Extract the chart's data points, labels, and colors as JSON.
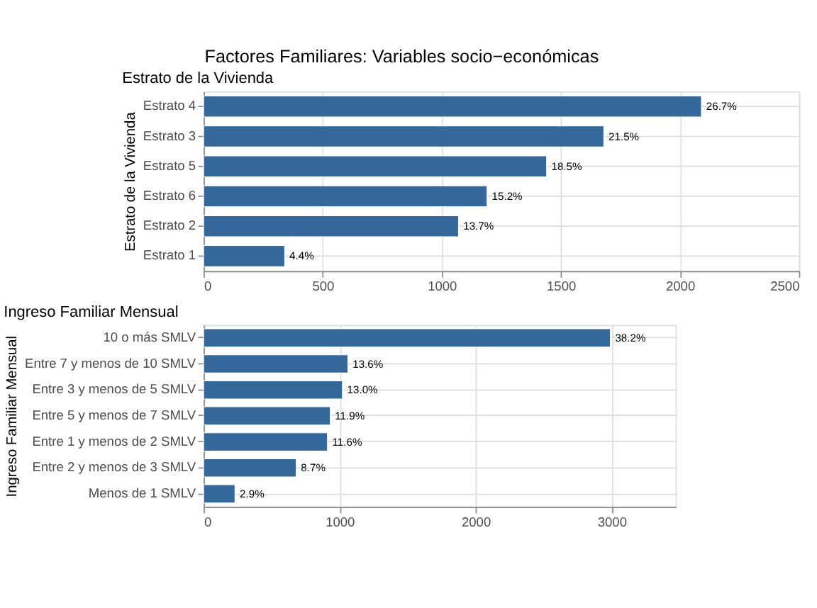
{
  "chart_data": [
    {
      "type": "bar",
      "orientation": "horizontal",
      "title": "Factores Familiares: Variables socio−económicas",
      "subtitle": "Estrato de la Vivienda",
      "ylabel": "Estrato de la Vivienda",
      "categories": [
        "Estrato 4",
        "Estrato 3",
        "Estrato 5",
        "Estrato 6",
        "Estrato 2",
        "Estrato 1"
      ],
      "series": [
        {
          "color": "#35689b",
          "values": [
            2090,
            1680,
            1440,
            1190,
            1070,
            340
          ]
        }
      ],
      "value_labels": [
        "26.7%",
        "21.5%",
        "18.5%",
        "15.2%",
        "13.7%",
        "4.4%"
      ],
      "xlim": [
        0,
        2500
      ],
      "xticks": [
        0,
        500,
        1000,
        1500,
        2000,
        2500
      ],
      "grid": true
    },
    {
      "type": "bar",
      "orientation": "horizontal",
      "title": "Ingreso Familiar Mensual",
      "ylabel": "Ingreso Familiar Mensual",
      "categories": [
        "10 o más SMLV",
        "Entre 7 y menos de 10 SMLV",
        "Entre 3 y menos de 5 SMLV",
        "Entre 5 y menos de 7 SMLV",
        "Entre 1 y menos de 2 SMLV",
        "Entre 2 y menos de 3 SMLV",
        "Menos de 1 SMLV"
      ],
      "series": [
        {
          "color": "#35689b",
          "values": [
            2990,
            1060,
            1020,
            930,
            910,
            680,
            230
          ]
        }
      ],
      "value_labels": [
        "38.2%",
        "13.6%",
        "13.0%",
        "11.9%",
        "11.6%",
        "8.7%",
        "2.9%"
      ],
      "xlim": [
        0,
        3470
      ],
      "xticks": [
        0,
        1000,
        2000,
        3000
      ],
      "grid": true
    }
  ]
}
